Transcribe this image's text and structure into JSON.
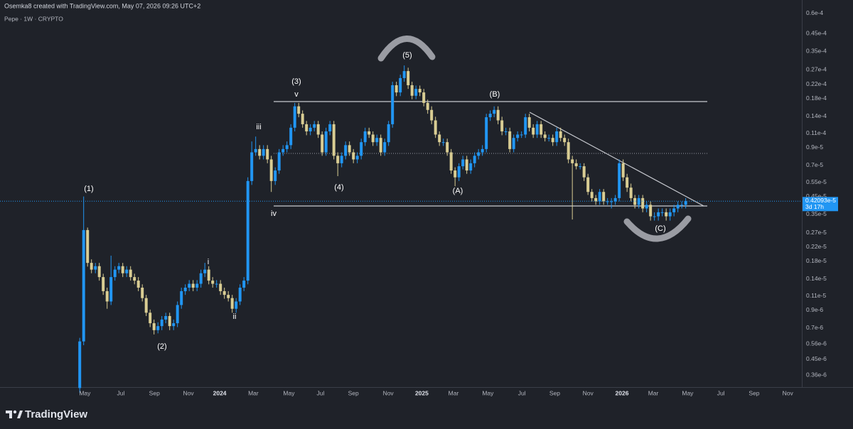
{
  "header": {
    "credit": "Osemka8 created with TradingView.com, May 07, 2026 09:26 UTC+2",
    "symbol": "Pepe · 1W · CRYPTO"
  },
  "footer": {
    "brand": "TradingView"
  },
  "chart_data": {
    "type": "candlestick",
    "log_scale": true,
    "grid": false,
    "up_color": "#2196f3",
    "down_color": "#d9cd93",
    "ylim": [
      3.04e-07,
      7.24e-05
    ],
    "yticks": [
      {
        "value": 3.6e-07,
        "label": "0.36e-6"
      },
      {
        "value": 4.5e-07,
        "label": "0.45e-6"
      },
      {
        "value": 5.6e-07,
        "label": "0.56e-6"
      },
      {
        "value": 7e-07,
        "label": "0.7e-6"
      },
      {
        "value": 9e-07,
        "label": "0.9e-6"
      },
      {
        "value": 1.1e-06,
        "label": "0.11e-5"
      },
      {
        "value": 1.4e-06,
        "label": "0.14e-5"
      },
      {
        "value": 1.8e-06,
        "label": "0.18e-5"
      },
      {
        "value": 2.2e-06,
        "label": "0.22e-5"
      },
      {
        "value": 2.7e-06,
        "label": "0.27e-5"
      },
      {
        "value": 3.5e-06,
        "label": "0.35e-5"
      },
      {
        "value": 4.5e-06,
        "label": "0.45e-5"
      },
      {
        "value": 5.5e-06,
        "label": "0.55e-5"
      },
      {
        "value": 7e-06,
        "label": "0.7e-5"
      },
      {
        "value": 9e-06,
        "label": "0.9e-5"
      },
      {
        "value": 1.1e-05,
        "label": "0.11e-4"
      },
      {
        "value": 1.4e-05,
        "label": "0.14e-4"
      },
      {
        "value": 1.8e-05,
        "label": "0.18e-4"
      },
      {
        "value": 2.2e-05,
        "label": "0.22e-4"
      },
      {
        "value": 2.7e-05,
        "label": "0.27e-4"
      },
      {
        "value": 3.5e-05,
        "label": "0.35e-4"
      },
      {
        "value": 4.5e-05,
        "label": "0.45e-4"
      },
      {
        "value": 6e-05,
        "label": "0.6e-4"
      }
    ],
    "xlim": [
      -20.4,
      184.7
    ],
    "xticks": [
      {
        "value": 1.3,
        "label": "May"
      },
      {
        "value": 10.5,
        "label": "Jul"
      },
      {
        "value": 19.1,
        "label": "Sep"
      },
      {
        "value": 27.8,
        "label": "Nov"
      },
      {
        "value": 35.8,
        "label": "2024"
      },
      {
        "value": 44.4,
        "label": "Mar"
      },
      {
        "value": 53.5,
        "label": "May"
      },
      {
        "value": 61.6,
        "label": "Jul"
      },
      {
        "value": 70,
        "label": "Sep"
      },
      {
        "value": 78.9,
        "label": "Nov"
      },
      {
        "value": 87.5,
        "label": "2025"
      },
      {
        "value": 95.6,
        "label": "Mar"
      },
      {
        "value": 104.4,
        "label": "May"
      },
      {
        "value": 113.1,
        "label": "Jul"
      },
      {
        "value": 121.5,
        "label": "Sep"
      },
      {
        "value": 130,
        "label": "Nov"
      },
      {
        "value": 138.7,
        "label": "2026"
      },
      {
        "value": 146.7,
        "label": "Mar"
      },
      {
        "value": 155.5,
        "label": "May"
      },
      {
        "value": 164,
        "label": "Jul"
      },
      {
        "value": 172.5,
        "label": "Sep"
      },
      {
        "value": 181.1,
        "label": "Nov"
      }
    ],
    "open": [
      3e-07,
      5.8e-07,
      2.8e-06,
      1.76e-06,
      1.6e-06,
      1.68e-06,
      1.44e-06,
      1.18e-06,
      1.02e-06,
      1.44e-06,
      1.6e-06,
      1.68e-06,
      1.52e-06,
      1.6e-06,
      1.44e-06,
      1.37e-06,
      1.24e-06,
      1.07e-06,
      8.7e-07,
      7.5e-07,
      6.8e-07,
      7.2e-07,
      7.9e-07,
      8.3e-07,
      7.2e-07,
      7.5e-07,
      9.7e-07,
      1.18e-06,
      1.24e-06,
      1.31e-06,
      1.24e-06,
      1.31e-06,
      1.52e-06,
      1.6e-06,
      1.37e-06,
      1.31e-06,
      1.31e-06,
      1.18e-06,
      1.12e-06,
      1.07e-06,
      9.2e-07,
      1.02e-06,
      1.24e-06,
      1.37e-06,
      5.6e-06,
      8.4e-06,
      8.8e-06,
      8e-06,
      8.8e-06,
      7.6e-06,
      5.6e-06,
      6.5e-06,
      8.4e-06,
      8.8e-06,
      9.3e-06,
      1.19e-05,
      1.61e-05,
      1.45e-05,
      1.25e-05,
      1.13e-05,
      1.19e-05,
      1.25e-05,
      1.08e-05,
      8.4e-06,
      1.13e-05,
      1.25e-05,
      8e-06,
      7.2e-06,
      8e-06,
      9.3e-06,
      8.4e-06,
      7.6e-06,
      8e-06,
      9.7e-06,
      1.13e-05,
      1.08e-05,
      9.7e-06,
      1.03e-05,
      8.4e-06,
      9.7e-06,
      1.25e-05,
      2.17e-05,
      1.96e-05,
      2.4e-05,
      2.65e-05,
      2.17e-05,
      1.87e-05,
      2.06e-05,
      1.96e-05,
      1.69e-05,
      1.53e-05,
      1.32e-05,
      1.08e-05,
      9.7e-06,
      9.7e-06,
      8.4e-06,
      6.5e-06,
      5.9e-06,
      6.9e-06,
      7.6e-06,
      6.5e-06,
      7.2e-06,
      8e-06,
      8.4e-06,
      8.8e-06,
      1.38e-05,
      1.45e-05,
      1.53e-05,
      1.32e-05,
      1.13e-05,
      1.13e-05,
      8.8e-06,
      1.03e-05,
      1.08e-05,
      1.08e-05,
      1.38e-05,
      1.19e-05,
      1.08e-05,
      1.25e-05,
      1.08e-05,
      1.03e-05,
      1.03e-05,
      9.7e-06,
      1.13e-05,
      1.03e-05,
      9.7e-06,
      7.6e-06,
      7.2e-06,
      6.9e-06,
      6.9e-06,
      5.9e-06,
      4.8e-06,
      4.4e-06,
      4.2e-06,
      4.8e-06,
      4.2e-06,
      4.2e-06,
      4.2e-06,
      4.4e-06,
      7.2e-06,
      5.9e-06,
      5.1e-06,
      4.4e-06,
      4e-06,
      4.4e-06,
      3.8e-06,
      4e-06,
      3.4e-06,
      3.4e-06,
      3.6e-06,
      3.6e-06,
      3.4e-06,
      3.6e-06,
      3.8e-06,
      4e-06,
      4e-06
    ],
    "high": [
      6.1e-07,
      4.5e-06,
      2.9e-06,
      1.85e-06,
      1.76e-06,
      1.76e-06,
      1.51e-06,
      1.24e-06,
      1.95e-06,
      1.68e-06,
      1.76e-06,
      1.76e-06,
      1.68e-06,
      1.68e-06,
      1.51e-06,
      1.44e-06,
      1.3e-06,
      1.12e-06,
      9.1e-07,
      7.9e-07,
      7.6e-07,
      8.3e-07,
      8.7e-07,
      8.7e-07,
      7.9e-07,
      1.02e-06,
      1.24e-06,
      1.3e-06,
      1.38e-06,
      1.38e-06,
      1.38e-06,
      1.6e-06,
      1.76e-06,
      1.68e-06,
      1.44e-06,
      1.38e-06,
      1.38e-06,
      1.24e-06,
      1.18e-06,
      1.12e-06,
      1.07e-06,
      1.3e-06,
      1.44e-06,
      5.9e-06,
      9.8e-06,
      1.05e-05,
      9.3e-06,
      9.3e-06,
      9.3e-06,
      8e-06,
      6.8e-06,
      8.8e-06,
      9.3e-06,
      9.8e-06,
      1.25e-05,
      1.69e-05,
      1.69e-05,
      1.52e-05,
      1.31e-05,
      1.25e-05,
      1.31e-05,
      1.31e-05,
      1.13e-05,
      1.19e-05,
      1.31e-05,
      1.31e-05,
      8.4e-06,
      8.4e-06,
      9.8e-06,
      9.8e-06,
      8.8e-06,
      8.4e-06,
      1.02e-05,
      1.19e-05,
      1.19e-05,
      1.13e-05,
      1.08e-05,
      1.08e-05,
      1.02e-05,
      1.31e-05,
      2.28e-05,
      2.28e-05,
      2.52e-05,
      2.87e-05,
      2.78e-05,
      2.28e-05,
      2.16e-05,
      2.16e-05,
      2.06e-05,
      1.77e-05,
      1.61e-05,
      1.39e-05,
      1.13e-05,
      1.02e-05,
      1.02e-05,
      8.8e-06,
      6.8e-06,
      7.2e-06,
      8e-06,
      8e-06,
      7.6e-06,
      8.4e-06,
      8.8e-06,
      9.3e-06,
      1.45e-05,
      1.52e-05,
      1.61e-05,
      1.61e-05,
      1.39e-05,
      1.19e-05,
      1.19e-05,
      1.08e-05,
      1.13e-05,
      1.13e-05,
      1.45e-05,
      1.45e-05,
      1.25e-05,
      1.31e-05,
      1.31e-05,
      1.13e-05,
      1.08e-05,
      1.08e-05,
      1.19e-05,
      1.19e-05,
      1.08e-05,
      1.02e-05,
      8e-06,
      7.6e-06,
      7.2e-06,
      7.2e-06,
      6.2e-06,
      5e-06,
      4.6e-06,
      5e-06,
      5e-06,
      4.4e-06,
      4.4e-06,
      4.6e-06,
      7.6e-06,
      7.6e-06,
      6.2e-06,
      5.4e-06,
      4.6e-06,
      4.6e-06,
      4.6e-06,
      4.2e-06,
      4.2e-06,
      3.6e-06,
      3.8e-06,
      3.8e-06,
      3.8e-06,
      3.8e-06,
      4e-06,
      4.2e-06,
      4.2e-06,
      4.4e-06
    ],
    "low": [
      2.8e-07,
      5.5e-07,
      1.67e-06,
      1.52e-06,
      1.52e-06,
      1.37e-06,
      1.12e-06,
      9.2e-07,
      9.7e-07,
      1.37e-06,
      1.52e-06,
      1.44e-06,
      1.44e-06,
      1.37e-06,
      1.3e-06,
      1.18e-06,
      1.02e-06,
      8.3e-07,
      7.1e-07,
      6.4e-07,
      6.5e-07,
      6.8e-07,
      7.5e-07,
      6.8e-07,
      6.8e-07,
      7.1e-07,
      9.2e-07,
      1.12e-06,
      1.18e-06,
      1.18e-06,
      1.18e-06,
      1.24e-06,
      1.44e-06,
      1.3e-06,
      1.24e-06,
      1.24e-06,
      1.12e-06,
      1.06e-06,
      1.02e-06,
      8.7e-07,
      8.7e-07,
      9.7e-07,
      1.18e-06,
      1.3e-06,
      5.3e-06,
      8e-06,
      7.6e-06,
      7.6e-06,
      7.2e-06,
      4.8e-06,
      5.3e-06,
      6.2e-06,
      8e-06,
      8.4e-06,
      8.8e-06,
      1.13e-05,
      1.38e-05,
      1.19e-05,
      1.07e-05,
      1.07e-05,
      1.13e-05,
      1.03e-05,
      8e-06,
      8e-06,
      1.07e-05,
      7.6e-06,
      6e-06,
      6.8e-06,
      7.6e-06,
      8e-06,
      7.2e-06,
      7.2e-06,
      7.6e-06,
      9.2e-06,
      1.03e-05,
      9.2e-06,
      9.2e-06,
      8e-06,
      8e-06,
      9.2e-06,
      1.19e-05,
      1.86e-05,
      1.86e-05,
      2.28e-05,
      2.06e-05,
      1.78e-05,
      1.78e-05,
      1.86e-05,
      1.61e-05,
      1.45e-05,
      1.25e-05,
      1.03e-05,
      9.2e-06,
      9.2e-06,
      8e-06,
      6.2e-06,
      5.2e-06,
      5.6e-06,
      6.6e-06,
      6.2e-06,
      6.2e-06,
      6.8e-06,
      7.6e-06,
      8e-06,
      8.4e-06,
      1.31e-05,
      1.38e-05,
      1.25e-05,
      1.07e-05,
      1.07e-05,
      8.4e-06,
      8.4e-06,
      9.8e-06,
      1.03e-05,
      1.03e-05,
      1.13e-05,
      1.03e-05,
      1.03e-05,
      1.03e-05,
      9.8e-06,
      9.8e-06,
      9.2e-06,
      9.2e-06,
      9.8e-06,
      9.2e-06,
      7.2e-06,
      3.25e-06,
      6.6e-06,
      6.6e-06,
      5.6e-06,
      4.6e-06,
      4.2e-06,
      4e-06,
      4e-06,
      4e-06,
      4e-06,
      3.8e-06,
      4e-06,
      4.2e-06,
      5.6e-06,
      4.8e-06,
      4.2e-06,
      3.8e-06,
      3.8e-06,
      3.6e-06,
      3.6e-06,
      3.2e-06,
      3.2e-06,
      3.2e-06,
      3.4e-06,
      3.2e-06,
      3.2e-06,
      3.4e-06,
      3.6e-06,
      3.8e-06,
      3.8e-06
    ],
    "close": [
      5.8e-07,
      2.8e-06,
      1.76e-06,
      1.6e-06,
      1.68e-06,
      1.44e-06,
      1.18e-06,
      1.02e-06,
      1.44e-06,
      1.6e-06,
      1.68e-06,
      1.52e-06,
      1.6e-06,
      1.44e-06,
      1.37e-06,
      1.24e-06,
      1.07e-06,
      8.7e-07,
      7.5e-07,
      6.8e-07,
      7.2e-07,
      7.9e-07,
      8.3e-07,
      7.2e-07,
      7.5e-07,
      9.7e-07,
      1.18e-06,
      1.24e-06,
      1.31e-06,
      1.24e-06,
      1.31e-06,
      1.52e-06,
      1.6e-06,
      1.37e-06,
      1.31e-06,
      1.31e-06,
      1.18e-06,
      1.12e-06,
      1.07e-06,
      9.2e-07,
      1.02e-06,
      1.24e-06,
      1.37e-06,
      5.6e-06,
      8.4e-06,
      8.8e-06,
      8e-06,
      8.8e-06,
      7.6e-06,
      5.6e-06,
      6.5e-06,
      8.4e-06,
      8.8e-06,
      9.3e-06,
      1.19e-05,
      1.61e-05,
      1.45e-05,
      1.25e-05,
      1.13e-05,
      1.19e-05,
      1.25e-05,
      1.08e-05,
      8.4e-06,
      1.13e-05,
      1.25e-05,
      8e-06,
      7.2e-06,
      8e-06,
      9.3e-06,
      8.4e-06,
      7.6e-06,
      8e-06,
      9.7e-06,
      1.13e-05,
      1.08e-05,
      9.7e-06,
      1.03e-05,
      8.4e-06,
      9.7e-06,
      1.25e-05,
      2.17e-05,
      1.96e-05,
      2.4e-05,
      2.65e-05,
      2.17e-05,
      1.87e-05,
      2.06e-05,
      1.96e-05,
      1.69e-05,
      1.53e-05,
      1.32e-05,
      1.08e-05,
      9.7e-06,
      9.7e-06,
      8.4e-06,
      6.5e-06,
      5.9e-06,
      6.9e-06,
      7.6e-06,
      6.5e-06,
      7.2e-06,
      8e-06,
      8.4e-06,
      8.8e-06,
      1.38e-05,
      1.45e-05,
      1.53e-05,
      1.32e-05,
      1.13e-05,
      1.13e-05,
      8.8e-06,
      1.03e-05,
      1.08e-05,
      1.08e-05,
      1.38e-05,
      1.19e-05,
      1.08e-05,
      1.25e-05,
      1.08e-05,
      1.03e-05,
      1.03e-05,
      9.7e-06,
      1.13e-05,
      1.03e-05,
      9.7e-06,
      7.6e-06,
      7.2e-06,
      6.9e-06,
      6.9e-06,
      5.9e-06,
      4.8e-06,
      4.4e-06,
      4.2e-06,
      4.8e-06,
      4.2e-06,
      4.2e-06,
      4.2e-06,
      4.4e-06,
      7.2e-06,
      5.9e-06,
      5.1e-06,
      4.4e-06,
      4e-06,
      4.4e-06,
      3.8e-06,
      4e-06,
      3.4e-06,
      3.4e-06,
      3.6e-06,
      3.6e-06,
      3.4e-06,
      3.6e-06,
      3.8e-06,
      4e-06,
      4e-06,
      4.2093e-06
    ],
    "last_price_label": "0.42093e-5",
    "countdown": "3d 17h",
    "annotations": [
      "(1)",
      "(2)",
      "i",
      "ii",
      "iii",
      "iv",
      "(3)",
      "v",
      "(4)",
      "(5)",
      "(A)",
      "(B)",
      "(C)"
    ]
  }
}
